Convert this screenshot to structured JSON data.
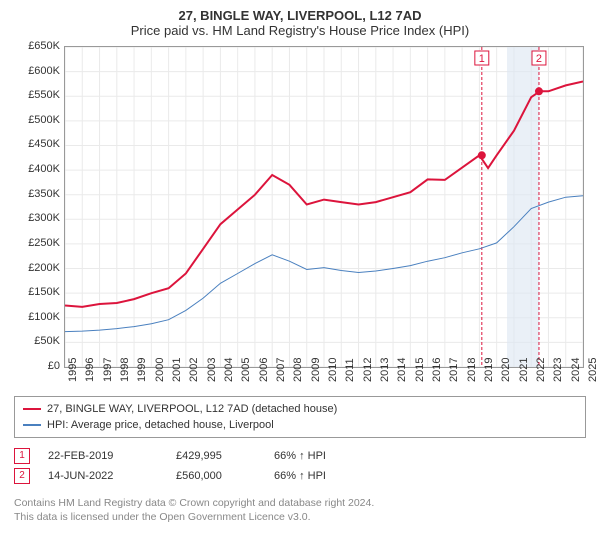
{
  "title": "27, BINGLE WAY, LIVERPOOL, L12 7AD",
  "subtitle": "Price paid vs. HM Land Registry's House Price Index (HPI)",
  "chart": {
    "type": "line",
    "xlim": [
      1995,
      2025
    ],
    "ylim": [
      0,
      650000
    ],
    "ytick_step": 50000,
    "yticks": [
      "£0",
      "£50K",
      "£100K",
      "£150K",
      "£200K",
      "£250K",
      "£300K",
      "£350K",
      "£400K",
      "£450K",
      "£500K",
      "£550K",
      "£600K",
      "£650K"
    ],
    "xticks": [
      1995,
      1996,
      1997,
      1998,
      1999,
      2000,
      2001,
      2002,
      2003,
      2004,
      2005,
      2006,
      2007,
      2008,
      2009,
      2010,
      2011,
      2012,
      2013,
      2014,
      2015,
      2016,
      2017,
      2018,
      2019,
      2020,
      2021,
      2022,
      2023,
      2024,
      2025
    ],
    "grid_color": "#eaeaea",
    "border_color": "#999999",
    "background_color": "#ffffff",
    "band_color": "#dce6f2",
    "series": [
      {
        "name": "s1",
        "label": "27, BINGLE WAY, LIVERPOOL, L12 7AD (detached house)",
        "color": "#dc143c",
        "width": 2,
        "points": [
          [
            1995,
            125000
          ],
          [
            1996,
            122000
          ],
          [
            1997,
            128000
          ],
          [
            1998,
            130000
          ],
          [
            1999,
            138000
          ],
          [
            2000,
            150000
          ],
          [
            2001,
            160000
          ],
          [
            2002,
            190000
          ],
          [
            2003,
            240000
          ],
          [
            2004,
            290000
          ],
          [
            2005,
            320000
          ],
          [
            2006,
            350000
          ],
          [
            2007,
            390000
          ],
          [
            2008,
            370000
          ],
          [
            2009,
            330000
          ],
          [
            2010,
            340000
          ],
          [
            2011,
            335000
          ],
          [
            2012,
            330000
          ],
          [
            2013,
            335000
          ],
          [
            2014,
            345000
          ],
          [
            2015,
            355000
          ],
          [
            2016,
            381000
          ],
          [
            2017,
            380000
          ],
          [
            2018,
            405000
          ],
          [
            2019,
            429995
          ],
          [
            2019.5,
            404000
          ],
          [
            2020,
            430000
          ],
          [
            2021,
            480000
          ],
          [
            2022,
            548000
          ],
          [
            2022.5,
            560000
          ],
          [
            2023,
            560000
          ],
          [
            2024,
            572000
          ],
          [
            2025,
            580000
          ]
        ]
      },
      {
        "name": "s2",
        "label": "HPI: Average price, detached house, Liverpool",
        "color": "#4a80bf",
        "width": 1,
        "points": [
          [
            1995,
            72000
          ],
          [
            1996,
            73000
          ],
          [
            1997,
            75000
          ],
          [
            1998,
            78000
          ],
          [
            1999,
            82000
          ],
          [
            2000,
            88000
          ],
          [
            2001,
            96000
          ],
          [
            2002,
            115000
          ],
          [
            2003,
            140000
          ],
          [
            2004,
            170000
          ],
          [
            2005,
            190000
          ],
          [
            2006,
            210000
          ],
          [
            2007,
            228000
          ],
          [
            2008,
            215000
          ],
          [
            2009,
            198000
          ],
          [
            2010,
            202000
          ],
          [
            2011,
            196000
          ],
          [
            2012,
            192000
          ],
          [
            2013,
            195000
          ],
          [
            2014,
            200000
          ],
          [
            2015,
            206000
          ],
          [
            2016,
            215000
          ],
          [
            2017,
            222000
          ],
          [
            2018,
            232000
          ],
          [
            2019,
            240000
          ],
          [
            2020,
            252000
          ],
          [
            2021,
            285000
          ],
          [
            2022,
            322000
          ],
          [
            2023,
            335000
          ],
          [
            2024,
            345000
          ],
          [
            2025,
            348000
          ]
        ]
      }
    ],
    "markers": [
      {
        "n": "1",
        "x": 2019.14,
        "y": 429995
      },
      {
        "n": "2",
        "x": 2022.45,
        "y": 560000
      }
    ],
    "band": [
      2020.6,
      2022.45
    ]
  },
  "legend": {
    "items": [
      {
        "color": "#dc143c",
        "label": "27, BINGLE WAY, LIVERPOOL, L12 7AD (detached house)"
      },
      {
        "color": "#4a80bf",
        "label": "HPI: Average price, detached house, Liverpool"
      }
    ]
  },
  "events": [
    {
      "n": "1",
      "date": "22-FEB-2019",
      "price": "£429,995",
      "pct": "66% ↑ HPI"
    },
    {
      "n": "2",
      "date": "14-JUN-2022",
      "price": "£560,000",
      "pct": "66% ↑ HPI"
    }
  ],
  "footer": {
    "line1": "Contains HM Land Registry data © Crown copyright and database right 2024.",
    "line2": "This data is licensed under the Open Government Licence v3.0."
  }
}
